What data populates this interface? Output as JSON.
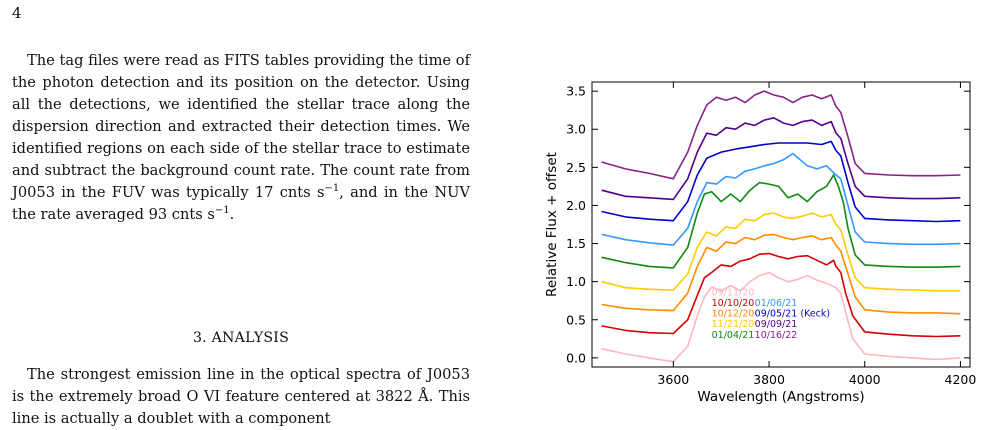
{
  "page": {
    "number": "4"
  },
  "text": {
    "para1_a": "The tag files were read as FITS tables providing the time of the photon detection and its position on the detector. Using all the detections, we identified the stellar trace along the dispersion direction and extracted their detection times. We identified regions on each side of the stellar trace to estimate and subtract the background count rate. The count rate from J0053 in the FUV was typically 17 cnts s",
    "para1_exp1": "−1",
    "para1_b": ", and in the NUV the rate averaged 93 cnts s",
    "para1_exp2": "−1",
    "para1_c": ".",
    "section_title": "3. ANALYSIS",
    "para2": "The strongest emission line in the optical spectra of J0053 is the extremely broad O VI feature centered at 3822 Å. This line is actually a doublet with a component"
  },
  "chart_data": {
    "type": "line",
    "xlabel": "Wavelength (Angstroms)",
    "ylabel": "Relative Flux + offset",
    "xlim": [
      3430,
      4220
    ],
    "ylim": [
      -0.12,
      3.62
    ],
    "xticks": [
      3600,
      3800,
      4000,
      4200
    ],
    "yticks": [
      0.0,
      0.5,
      1.0,
      1.5,
      2.0,
      2.5,
      3.0,
      3.5
    ],
    "ytick_labels": [
      "0.0",
      "0.5",
      "1.0",
      "1.5",
      "2.0",
      "2.5",
      "3.0",
      "3.5"
    ],
    "grid": false,
    "legend_placement": "lower-left",
    "series": [
      {
        "name": "09/11/20",
        "color": "#ffb6c1",
        "values": [
          [
            3450,
            0.12
          ],
          [
            3500,
            0.05
          ],
          [
            3550,
            0.0
          ],
          [
            3600,
            -0.05
          ],
          [
            3630,
            0.15
          ],
          [
            3650,
            0.55
          ],
          [
            3665,
            0.8
          ],
          [
            3680,
            0.93
          ],
          [
            3700,
            0.88
          ],
          [
            3720,
            0.95
          ],
          [
            3740,
            0.88
          ],
          [
            3760,
            1.0
          ],
          [
            3780,
            1.08
          ],
          [
            3800,
            1.12
          ],
          [
            3820,
            1.05
          ],
          [
            3840,
            1.0
          ],
          [
            3860,
            1.03
          ],
          [
            3880,
            1.08
          ],
          [
            3900,
            1.02
          ],
          [
            3920,
            0.98
          ],
          [
            3940,
            0.92
          ],
          [
            3950,
            0.85
          ],
          [
            3960,
            0.6
          ],
          [
            3975,
            0.25
          ],
          [
            4000,
            0.05
          ],
          [
            4050,
            0.02
          ],
          [
            4100,
            0.0
          ],
          [
            4150,
            -0.02
          ],
          [
            4200,
            0.0
          ]
        ]
      },
      {
        "name": "10/10/20",
        "color": "#d40000",
        "values": [
          [
            3450,
            0.42
          ],
          [
            3500,
            0.36
          ],
          [
            3550,
            0.33
          ],
          [
            3600,
            0.32
          ],
          [
            3630,
            0.5
          ],
          [
            3650,
            0.82
          ],
          [
            3665,
            1.05
          ],
          [
            3680,
            1.12
          ],
          [
            3700,
            1.22
          ],
          [
            3720,
            1.2
          ],
          [
            3740,
            1.27
          ],
          [
            3760,
            1.3
          ],
          [
            3780,
            1.36
          ],
          [
            3800,
            1.37
          ],
          [
            3820,
            1.33
          ],
          [
            3840,
            1.3
          ],
          [
            3860,
            1.33
          ],
          [
            3880,
            1.34
          ],
          [
            3900,
            1.28
          ],
          [
            3920,
            1.22
          ],
          [
            3935,
            1.28
          ],
          [
            3940,
            1.2
          ],
          [
            3950,
            1.12
          ],
          [
            3960,
            0.85
          ],
          [
            3975,
            0.55
          ],
          [
            4000,
            0.34
          ],
          [
            4050,
            0.31
          ],
          [
            4100,
            0.29
          ],
          [
            4150,
            0.28
          ],
          [
            4200,
            0.29
          ]
        ]
      },
      {
        "name": "10/12/20",
        "color": "#ff8c00",
        "values": [
          [
            3450,
            0.7
          ],
          [
            3500,
            0.65
          ],
          [
            3550,
            0.63
          ],
          [
            3600,
            0.62
          ],
          [
            3630,
            0.85
          ],
          [
            3650,
            1.2
          ],
          [
            3670,
            1.45
          ],
          [
            3690,
            1.4
          ],
          [
            3710,
            1.52
          ],
          [
            3730,
            1.5
          ],
          [
            3750,
            1.58
          ],
          [
            3770,
            1.55
          ],
          [
            3790,
            1.61
          ],
          [
            3810,
            1.62
          ],
          [
            3830,
            1.58
          ],
          [
            3850,
            1.55
          ],
          [
            3870,
            1.58
          ],
          [
            3890,
            1.6
          ],
          [
            3910,
            1.55
          ],
          [
            3930,
            1.58
          ],
          [
            3940,
            1.48
          ],
          [
            3950,
            1.4
          ],
          [
            3965,
            1.1
          ],
          [
            3980,
            0.8
          ],
          [
            4000,
            0.63
          ],
          [
            4050,
            0.6
          ],
          [
            4100,
            0.59
          ],
          [
            4150,
            0.59
          ],
          [
            4200,
            0.58
          ]
        ]
      },
      {
        "name": "11/21/20",
        "color": "#ffcc00",
        "values": [
          [
            3450,
            1.0
          ],
          [
            3500,
            0.92
          ],
          [
            3550,
            0.9
          ],
          [
            3600,
            0.89
          ],
          [
            3630,
            1.1
          ],
          [
            3650,
            1.45
          ],
          [
            3670,
            1.65
          ],
          [
            3690,
            1.6
          ],
          [
            3710,
            1.72
          ],
          [
            3730,
            1.7
          ],
          [
            3750,
            1.82
          ],
          [
            3770,
            1.8
          ],
          [
            3790,
            1.88
          ],
          [
            3810,
            1.9
          ],
          [
            3830,
            1.85
          ],
          [
            3850,
            1.83
          ],
          [
            3870,
            1.86
          ],
          [
            3890,
            1.9
          ],
          [
            3910,
            1.85
          ],
          [
            3930,
            1.88
          ],
          [
            3940,
            1.75
          ],
          [
            3950,
            1.68
          ],
          [
            3965,
            1.35
          ],
          [
            3980,
            1.05
          ],
          [
            4000,
            0.92
          ],
          [
            4050,
            0.9
          ],
          [
            4100,
            0.89
          ],
          [
            4150,
            0.88
          ],
          [
            4200,
            0.88
          ]
        ]
      },
      {
        "name": "01/04/21",
        "color": "#118811",
        "values": [
          [
            3450,
            1.32
          ],
          [
            3500,
            1.25
          ],
          [
            3550,
            1.2
          ],
          [
            3600,
            1.18
          ],
          [
            3630,
            1.45
          ],
          [
            3650,
            1.9
          ],
          [
            3665,
            2.15
          ],
          [
            3680,
            2.18
          ],
          [
            3700,
            2.05
          ],
          [
            3720,
            2.15
          ],
          [
            3740,
            2.05
          ],
          [
            3760,
            2.2
          ],
          [
            3780,
            2.3
          ],
          [
            3800,
            2.28
          ],
          [
            3820,
            2.25
          ],
          [
            3840,
            2.1
          ],
          [
            3860,
            2.15
          ],
          [
            3880,
            2.05
          ],
          [
            3900,
            2.18
          ],
          [
            3920,
            2.25
          ],
          [
            3935,
            2.4
          ],
          [
            3945,
            2.25
          ],
          [
            3955,
            2.05
          ],
          [
            3965,
            1.7
          ],
          [
            3980,
            1.35
          ],
          [
            4000,
            1.22
          ],
          [
            4050,
            1.2
          ],
          [
            4100,
            1.19
          ],
          [
            4150,
            1.19
          ],
          [
            4200,
            1.2
          ]
        ]
      },
      {
        "name": "01/06/21",
        "color": "#3399ff",
        "values": [
          [
            3450,
            1.62
          ],
          [
            3500,
            1.55
          ],
          [
            3550,
            1.51
          ],
          [
            3600,
            1.48
          ],
          [
            3630,
            1.7
          ],
          [
            3650,
            2.05
          ],
          [
            3670,
            2.3
          ],
          [
            3690,
            2.28
          ],
          [
            3710,
            2.38
          ],
          [
            3730,
            2.36
          ],
          [
            3750,
            2.45
          ],
          [
            3770,
            2.48
          ],
          [
            3790,
            2.52
          ],
          [
            3810,
            2.55
          ],
          [
            3830,
            2.6
          ],
          [
            3850,
            2.68
          ],
          [
            3865,
            2.6
          ],
          [
            3880,
            2.52
          ],
          [
            3900,
            2.48
          ],
          [
            3920,
            2.52
          ],
          [
            3940,
            2.4
          ],
          [
            3950,
            2.35
          ],
          [
            3965,
            2.0
          ],
          [
            3980,
            1.65
          ],
          [
            4000,
            1.52
          ],
          [
            4050,
            1.5
          ],
          [
            4100,
            1.49
          ],
          [
            4150,
            1.49
          ],
          [
            4200,
            1.5
          ]
        ]
      },
      {
        "name": "09/05/21 (Keck)",
        "color": "#0000cc",
        "values": [
          [
            3450,
            1.92
          ],
          [
            3500,
            1.85
          ],
          [
            3550,
            1.82
          ],
          [
            3600,
            1.8
          ],
          [
            3630,
            2.05
          ],
          [
            3650,
            2.4
          ],
          [
            3670,
            2.62
          ],
          [
            3700,
            2.7
          ],
          [
            3730,
            2.74
          ],
          [
            3760,
            2.77
          ],
          [
            3790,
            2.8
          ],
          [
            3820,
            2.82
          ],
          [
            3850,
            2.82
          ],
          [
            3880,
            2.82
          ],
          [
            3910,
            2.8
          ],
          [
            3930,
            2.84
          ],
          [
            3940,
            2.72
          ],
          [
            3950,
            2.65
          ],
          [
            3965,
            2.3
          ],
          [
            3980,
            1.98
          ],
          [
            4000,
            1.83
          ],
          [
            4050,
            1.81
          ],
          [
            4100,
            1.8
          ],
          [
            4150,
            1.79
          ],
          [
            4200,
            1.8
          ]
        ]
      },
      {
        "name": "09/09/21",
        "color": "#550088",
        "values": [
          [
            3450,
            2.2
          ],
          [
            3500,
            2.12
          ],
          [
            3550,
            2.1
          ],
          [
            3600,
            2.08
          ],
          [
            3630,
            2.35
          ],
          [
            3650,
            2.7
          ],
          [
            3670,
            2.95
          ],
          [
            3690,
            2.92
          ],
          [
            3710,
            3.02
          ],
          [
            3730,
            3.0
          ],
          [
            3750,
            3.08
          ],
          [
            3770,
            3.05
          ],
          [
            3790,
            3.12
          ],
          [
            3810,
            3.15
          ],
          [
            3830,
            3.08
          ],
          [
            3850,
            3.05
          ],
          [
            3870,
            3.1
          ],
          [
            3890,
            3.12
          ],
          [
            3910,
            3.05
          ],
          [
            3930,
            3.1
          ],
          [
            3940,
            2.95
          ],
          [
            3950,
            2.88
          ],
          [
            3965,
            2.55
          ],
          [
            3980,
            2.25
          ],
          [
            4000,
            2.12
          ],
          [
            4050,
            2.1
          ],
          [
            4100,
            2.09
          ],
          [
            4150,
            2.09
          ],
          [
            4200,
            2.1
          ]
        ]
      },
      {
        "name": "10/16/22",
        "color": "#882288",
        "values": [
          [
            3450,
            2.57
          ],
          [
            3500,
            2.48
          ],
          [
            3550,
            2.42
          ],
          [
            3600,
            2.35
          ],
          [
            3630,
            2.7
          ],
          [
            3650,
            3.05
          ],
          [
            3670,
            3.32
          ],
          [
            3690,
            3.42
          ],
          [
            3710,
            3.38
          ],
          [
            3730,
            3.42
          ],
          [
            3750,
            3.35
          ],
          [
            3770,
            3.45
          ],
          [
            3790,
            3.5
          ],
          [
            3810,
            3.45
          ],
          [
            3830,
            3.42
          ],
          [
            3850,
            3.35
          ],
          [
            3870,
            3.42
          ],
          [
            3890,
            3.45
          ],
          [
            3910,
            3.4
          ],
          [
            3930,
            3.45
          ],
          [
            3940,
            3.3
          ],
          [
            3950,
            3.22
          ],
          [
            3965,
            2.9
          ],
          [
            3980,
            2.55
          ],
          [
            4000,
            2.42
          ],
          [
            4050,
            2.4
          ],
          [
            4100,
            2.39
          ],
          [
            4150,
            2.39
          ],
          [
            4200,
            2.4
          ]
        ]
      }
    ],
    "legend": [
      {
        "label": "09/11/20",
        "color": "#ffb6c1",
        "col": 0,
        "row": 0
      },
      {
        "label": "10/10/20",
        "color": "#d40000",
        "col": 0,
        "row": 1
      },
      {
        "label": "10/12/20",
        "color": "#ff8c00",
        "col": 0,
        "row": 2
      },
      {
        "label": "11/21/20",
        "color": "#ffcc00",
        "col": 0,
        "row": 3
      },
      {
        "label": "01/04/21",
        "color": "#118811",
        "col": 0,
        "row": 4
      },
      {
        "label": "01/06/21",
        "color": "#3399ff",
        "col": 1,
        "row": 1
      },
      {
        "label": "09/05/21 (Keck)",
        "color": "#0000cc",
        "col": 1,
        "row": 2
      },
      {
        "label": "09/09/21",
        "color": "#550088",
        "col": 1,
        "row": 3
      },
      {
        "label": "10/16/22",
        "color": "#882288",
        "col": 1,
        "row": 4
      }
    ]
  }
}
